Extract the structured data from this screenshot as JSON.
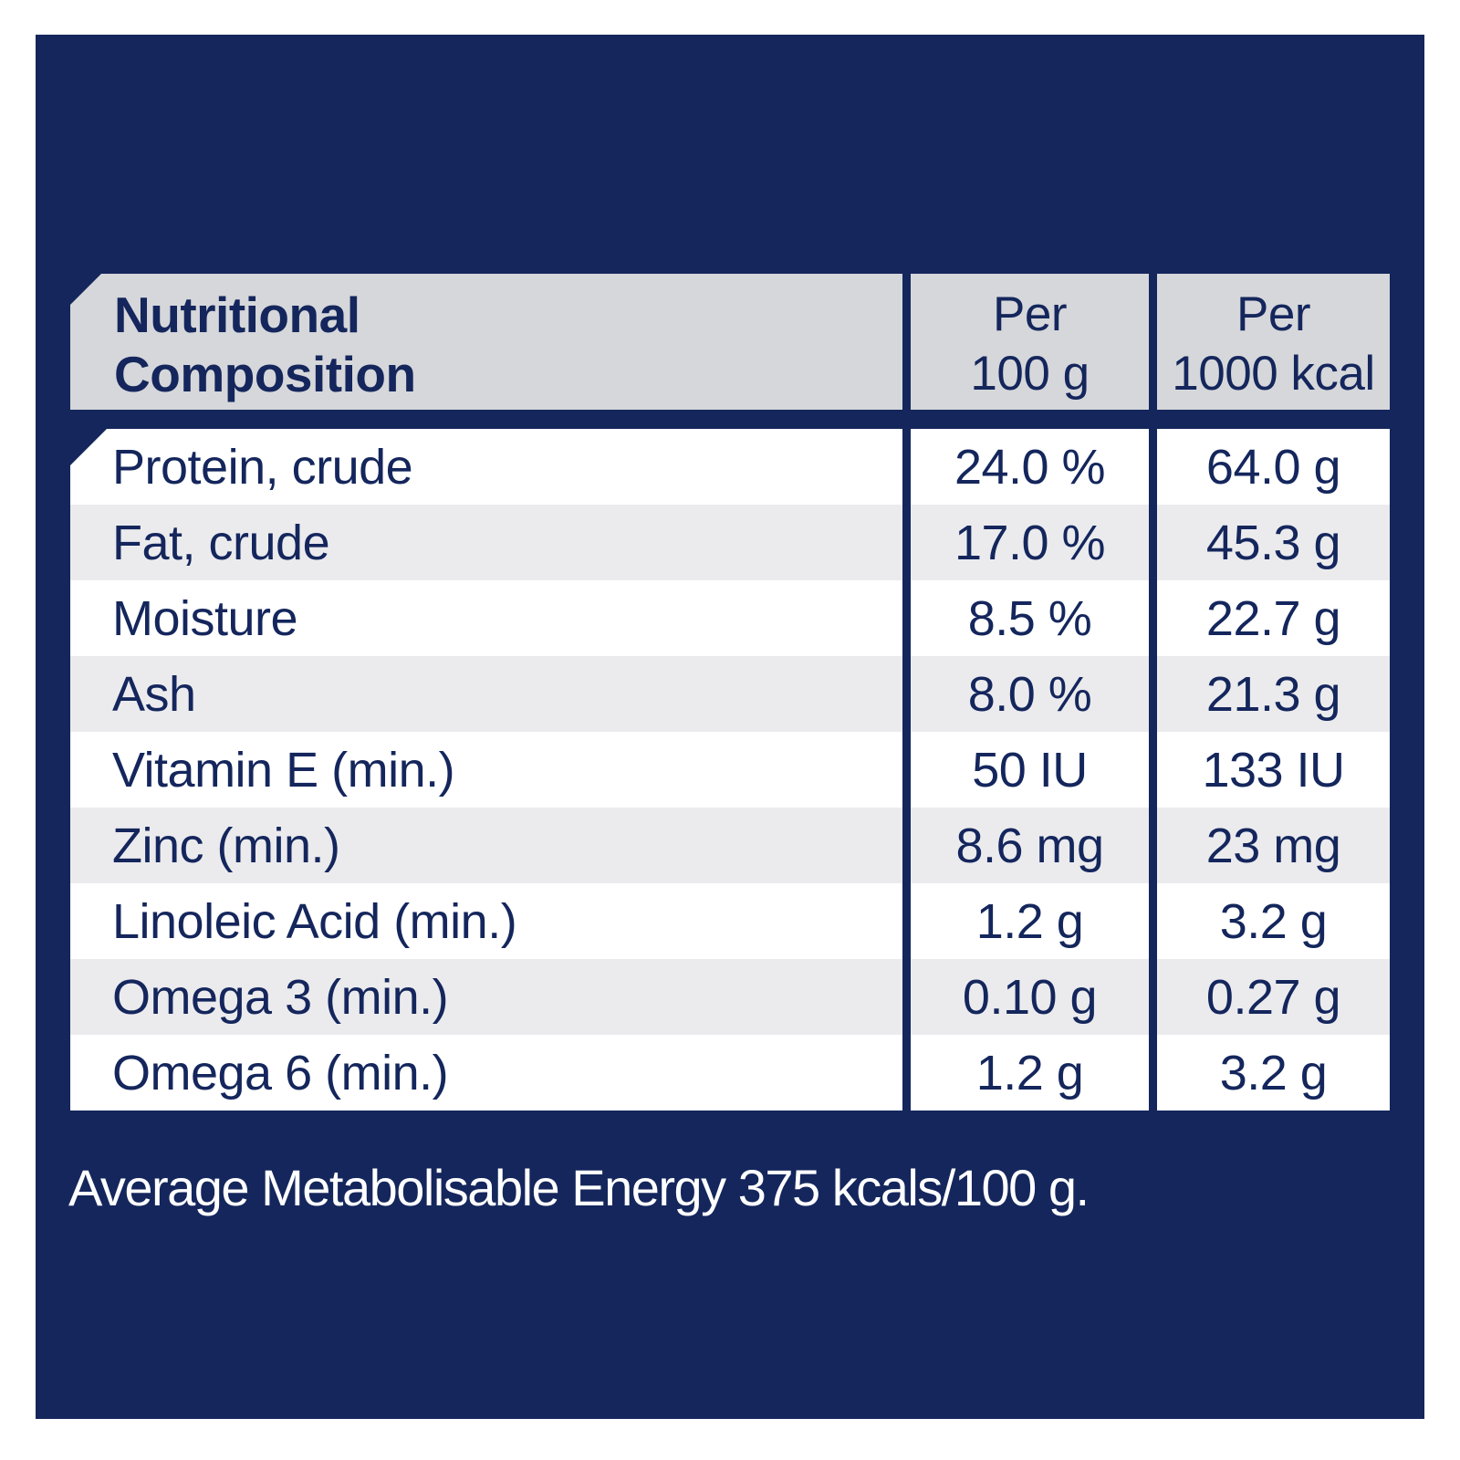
{
  "colors": {
    "navy": "#14265C",
    "header-gray": "#D6D7DA",
    "row-gray": "#EBEBEE",
    "row-white": "#FFFFFF",
    "footer-text": "#FFFFFF"
  },
  "table": {
    "header": {
      "title": "Nutritional\nComposition",
      "col_per_100g": "Per\n100 g",
      "col_per_1000kcal": "Per\n1000 kcal"
    },
    "rows": [
      {
        "label": "Protein, crude",
        "per_100g": "24.0 %",
        "per_1000kcal": "64.0 g"
      },
      {
        "label": "Fat, crude",
        "per_100g": "17.0 %",
        "per_1000kcal": "45.3 g"
      },
      {
        "label": "Moisture",
        "per_100g": "8.5 %",
        "per_1000kcal": "22.7 g"
      },
      {
        "label": "Ash",
        "per_100g": "8.0 %",
        "per_1000kcal": "21.3 g"
      },
      {
        "label": "Vitamin E (min.)",
        "per_100g": "50 IU",
        "per_1000kcal": "133 IU"
      },
      {
        "label": "Zinc (min.)",
        "per_100g": "8.6 mg",
        "per_1000kcal": "23 mg"
      },
      {
        "label": "Linoleic Acid (min.)",
        "per_100g": "1.2 g",
        "per_1000kcal": "3.2 g"
      },
      {
        "label": "Omega 3 (min.)",
        "per_100g": "0.10 g",
        "per_1000kcal": "0.27 g"
      },
      {
        "label": "Omega 6 (min.)",
        "per_100g": "1.2 g",
        "per_1000kcal": "3.2 g"
      }
    ]
  },
  "footer": {
    "text": "Average Metabolisable Energy 375 kcals/100 g."
  }
}
